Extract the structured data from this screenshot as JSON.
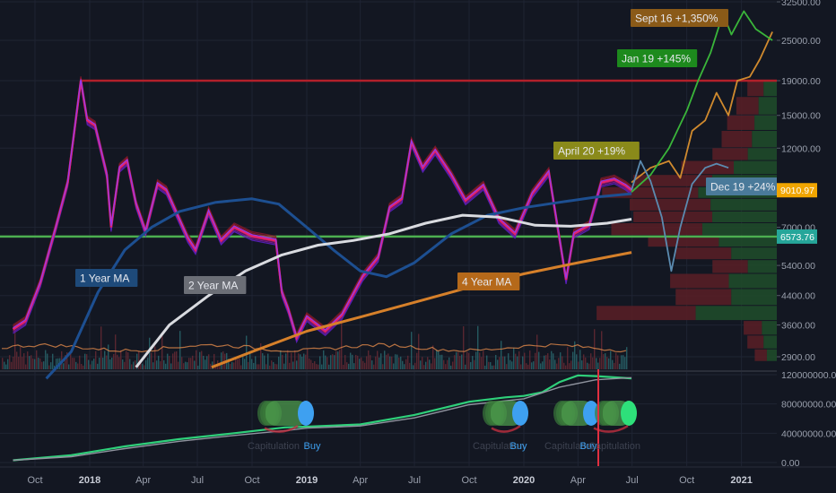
{
  "chart_data": {
    "type": "line",
    "title": "",
    "xlabel": "",
    "ylabel": "",
    "log_scale": true,
    "grid": true,
    "x_ticks": [
      "Oct",
      "2018",
      "Apr",
      "Jul",
      "Oct",
      "2019",
      "Apr",
      "Jul",
      "Oct",
      "2020",
      "Apr",
      "Jul",
      "Oct",
      "2021"
    ],
    "price_axis_labels": [
      "32500.00",
      "25000.00",
      "19000.00",
      "15000.00",
      "12000.00",
      "7000.00",
      "5400.00",
      "4400.00",
      "3600.00",
      "2900.00"
    ],
    "indicator_axis_labels": [
      "120000000.00",
      "80000000.00",
      "40000000.00",
      "0.00"
    ],
    "price_badges": [
      {
        "text": "9010.97",
        "value": 9010.97,
        "color": "#f0a500"
      },
      {
        "text": "6573.76",
        "value": 6573.76,
        "color": "#26a69a"
      }
    ],
    "levels": [
      {
        "value": 19000,
        "color": "#b2202a"
      },
      {
        "value": 6573.76,
        "color": "#4caf50"
      }
    ],
    "annotations": [
      {
        "text": "1 Year MA",
        "color": "#1e4a7a"
      },
      {
        "text": "2 Year MA",
        "color": "#6b6e76"
      },
      {
        "text": "4 Year MA",
        "color": "#b5691a"
      },
      {
        "text": "Sept 16 +1,350%",
        "color": "#8a5a18"
      },
      {
        "text": "Jan 19 +145%",
        "color": "#1d8a1d"
      },
      {
        "text": "April 20 +19%",
        "color": "#8a8a1a"
      },
      {
        "text": "Dec 19 +24%",
        "color": "#4a7a9a"
      }
    ],
    "indicator_labels": [
      {
        "text": "Capitulation",
        "color": "#3d4250"
      },
      {
        "text": "Buy",
        "color": "#3ea0f0"
      },
      {
        "text": "Capitulation",
        "color": "#3d4250"
      },
      {
        "text": "Buy",
        "color": "#3ea0f0"
      },
      {
        "text": "Capitulation",
        "color": "#3d4250"
      },
      {
        "text": "Buy",
        "color": "#3ea0f0"
      },
      {
        "text": "Capitulation",
        "color": "#3d4250"
      }
    ],
    "series": [
      {
        "role": "price",
        "color": "#e8226b",
        "points": [
          [
            "2017-08-25",
            3500
          ],
          [
            "2017-09-15",
            3700
          ],
          [
            "2017-10-10",
            4800
          ],
          [
            "2017-11-05",
            7000
          ],
          [
            "2017-11-25",
            9500
          ],
          [
            "2017-12-17",
            19000
          ],
          [
            "2017-12-28",
            14500
          ],
          [
            "2018-01-10",
            14000
          ],
          [
            "2018-01-30",
            10000
          ],
          [
            "2018-02-06",
            7000
          ],
          [
            "2018-02-20",
            10500
          ],
          [
            "2018-03-05",
            11000
          ],
          [
            "2018-03-20",
            8200
          ],
          [
            "2018-04-05",
            6800
          ],
          [
            "2018-04-25",
            9400
          ],
          [
            "2018-05-10",
            9000
          ],
          [
            "2018-05-30",
            7500
          ],
          [
            "2018-06-15",
            6500
          ],
          [
            "2018-06-28",
            6000
          ],
          [
            "2018-07-20",
            7800
          ],
          [
            "2018-08-10",
            6400
          ],
          [
            "2018-09-01",
            7000
          ],
          [
            "2018-10-01",
            6600
          ],
          [
            "2018-11-10",
            6400
          ],
          [
            "2018-11-20",
            4500
          ],
          [
            "2018-12-01",
            4000
          ],
          [
            "2018-12-15",
            3300
          ],
          [
            "2019-01-01",
            3800
          ],
          [
            "2019-02-01",
            3450
          ],
          [
            "2019-03-01",
            3850
          ],
          [
            "2019-04-05",
            5000
          ],
          [
            "2019-05-01",
            5700
          ],
          [
            "2019-05-20",
            8000
          ],
          [
            "2019-06-10",
            8500
          ],
          [
            "2019-06-26",
            12500
          ],
          [
            "2019-07-15",
            10500
          ],
          [
            "2019-08-05",
            11800
          ],
          [
            "2019-09-01",
            10000
          ],
          [
            "2019-09-25",
            8400
          ],
          [
            "2019-10-25",
            9300
          ],
          [
            "2019-11-20",
            7400
          ],
          [
            "2019-12-17",
            6700
          ],
          [
            "2020-01-15",
            8800
          ],
          [
            "2020-02-12",
            10200
          ],
          [
            "2020-03-12",
            4900
          ],
          [
            "2020-03-25",
            6700
          ],
          [
            "2020-04-20",
            7100
          ],
          [
            "2020-05-10",
            9500
          ],
          [
            "2020-06-01",
            9700
          ],
          [
            "2020-06-20",
            9300
          ],
          [
            "2020-06-30",
            9010
          ]
        ]
      },
      {
        "name": "1 Year MA",
        "color": "#1d4f91",
        "points": [
          [
            "2017-10-20",
            2500
          ],
          [
            "2017-12-01",
            3000
          ],
          [
            "2018-01-15",
            4500
          ],
          [
            "2018-03-01",
            6000
          ],
          [
            "2018-04-15",
            7000
          ],
          [
            "2018-06-01",
            7800
          ],
          [
            "2018-08-01",
            8300
          ],
          [
            "2018-10-01",
            8500
          ],
          [
            "2018-11-15",
            8200
          ],
          [
            "2019-01-01",
            7000
          ],
          [
            "2019-02-15",
            6000
          ],
          [
            "2019-04-01",
            5200
          ],
          [
            "2019-05-15",
            5000
          ],
          [
            "2019-07-01",
            5500
          ],
          [
            "2019-09-01",
            6700
          ],
          [
            "2019-11-01",
            7600
          ],
          [
            "2020-01-01",
            8000
          ],
          [
            "2020-03-01",
            8300
          ],
          [
            "2020-05-01",
            8600
          ],
          [
            "2020-06-30",
            8800
          ]
        ]
      },
      {
        "name": "2 Year MA",
        "color": "#d9dbe0",
        "points": [
          [
            "2018-03-20",
            2700
          ],
          [
            "2018-05-15",
            3600
          ],
          [
            "2018-07-20",
            4400
          ],
          [
            "2018-09-20",
            5200
          ],
          [
            "2018-11-20",
            5800
          ],
          [
            "2019-01-20",
            6200
          ],
          [
            "2019-03-20",
            6400
          ],
          [
            "2019-05-20",
            6700
          ],
          [
            "2019-07-20",
            7200
          ],
          [
            "2019-09-20",
            7600
          ],
          [
            "2019-11-20",
            7500
          ],
          [
            "2020-01-20",
            7100
          ],
          [
            "2020-03-20",
            7050
          ],
          [
            "2020-05-20",
            7200
          ],
          [
            "2020-06-30",
            7400
          ]
        ]
      },
      {
        "name": "4 Year MA",
        "color": "#d6802a",
        "points": [
          [
            "2018-07-25",
            2700
          ],
          [
            "2018-10-01",
            3000
          ],
          [
            "2019-01-01",
            3450
          ],
          [
            "2019-04-01",
            3800
          ],
          [
            "2019-07-01",
            4200
          ],
          [
            "2019-10-01",
            4650
          ],
          [
            "2020-01-01",
            5100
          ],
          [
            "2020-04-01",
            5500
          ],
          [
            "2020-06-30",
            5900
          ]
        ]
      },
      {
        "name": "Sept 16 +1,350%",
        "color": "#d08a2e",
        "points": [
          [
            "2020-06-30",
            9500
          ],
          [
            "2020-08-01",
            10500
          ],
          [
            "2020-09-01",
            11000
          ],
          [
            "2020-09-20",
            9800
          ],
          [
            "2020-10-10",
            13500
          ],
          [
            "2020-11-01",
            14500
          ],
          [
            "2020-11-20",
            17500
          ],
          [
            "2020-12-10",
            15000
          ],
          [
            "2020-12-25",
            19000
          ],
          [
            "2021-01-15",
            19500
          ],
          [
            "2021-02-01",
            22000
          ],
          [
            "2021-02-22",
            26500
          ]
        ]
      },
      {
        "name": "Jan 19 +145%",
        "color": "#3ab53a",
        "points": [
          [
            "2020-06-30",
            8900
          ],
          [
            "2020-08-01",
            10000
          ],
          [
            "2020-09-01",
            12000
          ],
          [
            "2020-10-01",
            15500
          ],
          [
            "2020-10-20",
            19000
          ],
          [
            "2020-11-10",
            23000
          ],
          [
            "2020-12-01",
            30000
          ],
          [
            "2020-12-15",
            26000
          ],
          [
            "2021-01-05",
            30500
          ],
          [
            "2021-01-25",
            27000
          ],
          [
            "2021-02-22",
            25000
          ]
        ]
      },
      {
        "name": "Dec 19 +24%",
        "color": "#5b8bb0",
        "points": [
          [
            "2020-06-30",
            9000
          ],
          [
            "2020-07-15",
            11000
          ],
          [
            "2020-08-01",
            9600
          ],
          [
            "2020-08-20",
            7500
          ],
          [
            "2020-09-05",
            5200
          ],
          [
            "2020-09-20",
            7000
          ],
          [
            "2020-10-10",
            9400
          ],
          [
            "2020-11-01",
            10500
          ],
          [
            "2020-11-20",
            10800
          ],
          [
            "2020-12-10",
            10500
          ]
        ]
      }
    ],
    "indicator_series": [
      {
        "role": "main",
        "color": "#2fd07a",
        "points": [
          [
            "2017-08-25",
            3000000
          ],
          [
            "2017-12-01",
            10000000
          ],
          [
            "2018-03-01",
            22000000
          ],
          [
            "2018-06-01",
            32000000
          ],
          [
            "2018-09-01",
            40000000
          ],
          [
            "2018-11-25",
            48000000
          ],
          [
            "2019-01-01",
            49000000
          ],
          [
            "2019-04-01",
            52000000
          ],
          [
            "2019-07-01",
            65000000
          ],
          [
            "2019-10-01",
            83000000
          ],
          [
            "2019-12-01",
            89000000
          ],
          [
            "2020-01-01",
            91000000
          ],
          [
            "2020-02-01",
            96000000
          ],
          [
            "2020-03-01",
            110000000
          ],
          [
            "2020-04-01",
            119000000
          ],
          [
            "2020-05-01",
            118000000
          ],
          [
            "2020-06-30",
            115000000
          ]
        ]
      },
      {
        "role": "signal",
        "color": "#8f939e",
        "points": [
          [
            "2017-08-25",
            3000000
          ],
          [
            "2017-12-01",
            8000000
          ],
          [
            "2018-03-01",
            19000000
          ],
          [
            "2018-06-01",
            29000000
          ],
          [
            "2018-09-01",
            37000000
          ],
          [
            "2018-12-01",
            44000000
          ],
          [
            "2019-01-01",
            47000000
          ],
          [
            "2019-04-01",
            50000000
          ],
          [
            "2019-07-01",
            61000000
          ],
          [
            "2019-10-01",
            79000000
          ],
          [
            "2020-01-01",
            87000000
          ],
          [
            "2020-03-01",
            103000000
          ],
          [
            "2020-05-01",
            113000000
          ],
          [
            "2020-06-30",
            116000000
          ]
        ]
      }
    ]
  }
}
